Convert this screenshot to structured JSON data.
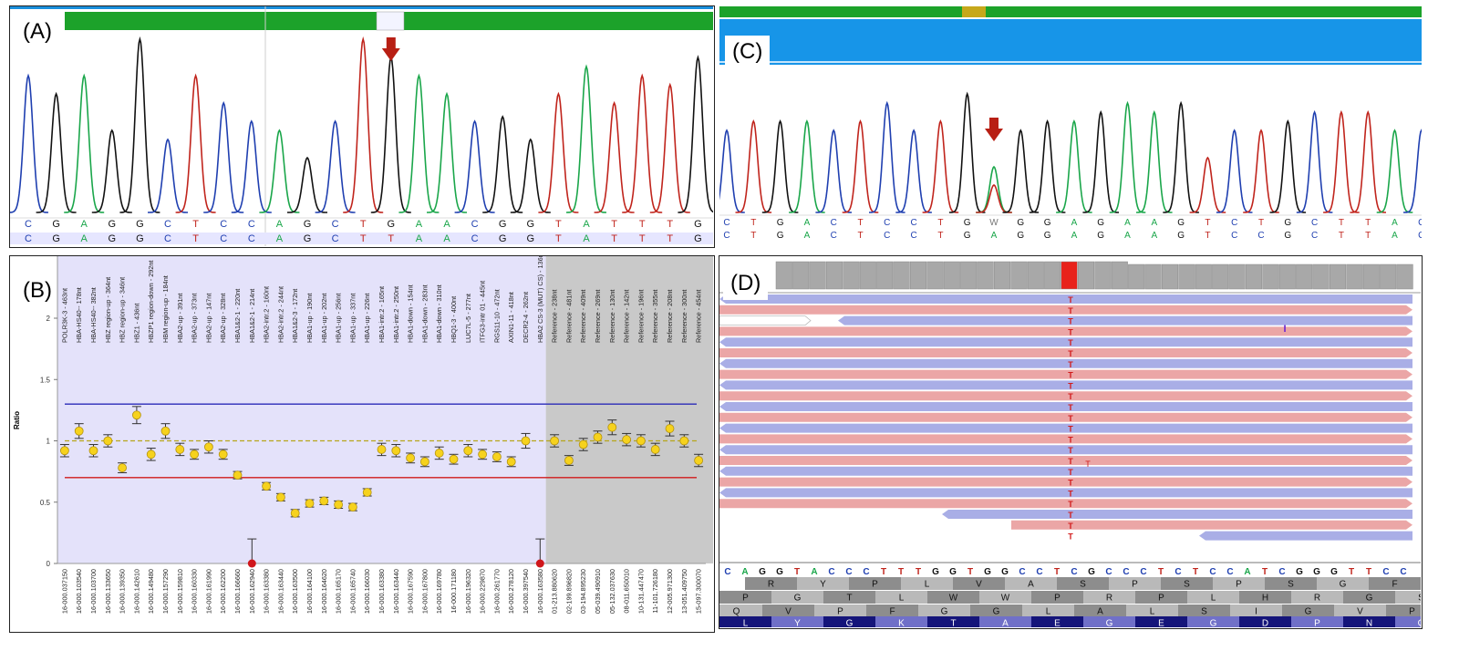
{
  "panels": {
    "A": {
      "label": "(A)",
      "arrow_color": "#b81f14"
    },
    "B": {
      "label": "(B)"
    },
    "C": {
      "label": "(C)",
      "arrow_color": "#b81f14"
    },
    "D": {
      "label": "(D)"
    }
  },
  "colors": {
    "A": "#1aa64a",
    "C": "#1f3fb0",
    "G": "#111111",
    "T": "#c0241c",
    "W": "#777777",
    "ref_bg": "#e6e6ff",
    "mlpa_bg": "#e4e2fa",
    "mlpa_ref_bg": "#c9c9c9",
    "fwd_read": "#eba6a6",
    "rev_read": "#a9aee6",
    "mismatch": "#e8221b"
  },
  "panelA": {
    "base_calls": [
      "C",
      "G",
      "A",
      "G",
      "G",
      "C",
      "T",
      "C",
      "C",
      "A",
      "G",
      "C",
      "T",
      "G",
      "A",
      "A",
      "C",
      "G",
      "G",
      "T",
      "A",
      "T",
      "T",
      "T",
      "G"
    ],
    "reference": [
      "C",
      "G",
      "A",
      "G",
      "G",
      "C",
      "T",
      "C",
      "C",
      "A",
      "G",
      "C",
      "T",
      "T",
      "A",
      "A",
      "C",
      "G",
      "G",
      "T",
      "A",
      "T",
      "T",
      "T",
      "G"
    ]
  },
  "panelB": {
    "chart_data": {
      "type": "scatter",
      "title": "",
      "xlabel": "",
      "ylabel": "Ratio",
      "ylim": [
        0,
        2
      ],
      "yticks": [
        0,
        0.5,
        1,
        1.5,
        2
      ],
      "upper_limit": 1.3,
      "lower_limit": 0.7,
      "mean_line": 1.0,
      "probe_names": [
        "POLR3K-3 - 463nt",
        "HBA-HS40-- 178nt",
        "HBA-HS40-- 382nt",
        "HBZ region-up - 364nt",
        "HBZ region-up - 346nt",
        "HBZ1 - 436nt",
        "HBZP1 region-down - 292nt",
        "HBM region-up - 184nt",
        "HBA2-up - 391nt",
        "HBA2-up - 373nt",
        "HBA2-up - 147nt",
        "HBA2-up - 328nt",
        "HBA1&2-1 - 220nt",
        "HBA1&2-1 - 214nt",
        "HBA2-intr.2 - 160nt",
        "HBA2-intr.2 - 244nt",
        "HBA1&2-3 - 172nt",
        "HBA1-up - 190nt",
        "HBA1-up - 202nt",
        "HBA1-up - 256nt",
        "HBA1-up - 337nt",
        "HBA1-up - 226nt",
        "HBA1-intr.2 - 165nt",
        "HBA1-intr.2 - 250nt",
        "HBA1-down - 154nt",
        "HBA1-down - 283nt",
        "HBA1-down - 310nt",
        "HBQ1-3 - 400nt",
        "LUC7L-5 - 277nt",
        "ITFG3-intr 01 - 445nt",
        "RGS11-10 - 472nt",
        "AXIN1-11 - 418nt",
        "DECR2-4 - 262nt",
        "HBA2 CS-3 (MUT) CS) - 136nt",
        "Reference - 238nt",
        "Reference - 481nt",
        "Reference - 409nt",
        "Reference - 269nt",
        "Reference - 130nt",
        "Reference - 142nt",
        "Reference - 196nt",
        "Reference - 355nt",
        "Reference - 208nt",
        "Reference - 300nt",
        "Reference - 454nt"
      ],
      "positions": [
        "16-000.037150",
        "16-000.103540",
        "16-000.103700",
        "16-000.133650",
        "16-000.139350",
        "16-000.142610",
        "16-000.149480",
        "16-000.157290",
        "16-000.159810",
        "16-000.160330",
        "16-000.161990",
        "16-000.162200",
        "16-000.166660",
        "16-000.162940",
        "16-000.163380",
        "16-000.163440",
        "16-000.163500",
        "16-000.164100",
        "16-000.164620",
        "16-000.165170",
        "16-000.165740",
        "16-000.166030",
        "16-000.163380",
        "16-000.163440",
        "16-000.167590",
        "16-000.167800",
        "16-000.169780",
        "16-000.171180",
        "16-000.196320",
        "16-000.229870",
        "16-000.261770",
        "16-000.278120",
        "16-000.397540",
        "16-000.163580",
        "01-213.880620",
        "02-199.896820",
        "03-194.895230",
        "05-039.490910",
        "05-132.037630",
        "08-011.650010",
        "10-131.447470",
        "11-101.726180",
        "12-005.971300",
        "13-051.409750",
        "15-097.300070"
      ],
      "values": [
        0.92,
        1.08,
        0.92,
        1.0,
        0.78,
        1.21,
        0.89,
        1.08,
        0.93,
        0.89,
        0.95,
        0.89,
        0.72,
        0.0,
        0.63,
        0.54,
        0.41,
        0.49,
        0.51,
        0.48,
        0.46,
        0.58,
        0.93,
        0.92,
        0.86,
        0.83,
        0.9,
        0.85,
        0.92,
        0.89,
        0.87,
        0.83,
        1.0,
        0.0,
        1.0,
        0.84,
        0.97,
        1.03,
        1.11,
        1.01,
        1.0,
        0.93,
        1.1,
        1.0,
        0.84
      ],
      "errors": [
        0.05,
        0.06,
        0.05,
        0.05,
        0.04,
        0.07,
        0.05,
        0.06,
        0.05,
        0.04,
        0.05,
        0.04,
        0.03,
        0.2,
        0.03,
        0.03,
        0.03,
        0.03,
        0.03,
        0.03,
        0.03,
        0.03,
        0.05,
        0.05,
        0.04,
        0.04,
        0.05,
        0.04,
        0.05,
        0.04,
        0.04,
        0.04,
        0.06,
        0.2,
        0.05,
        0.04,
        0.05,
        0.05,
        0.06,
        0.05,
        0.05,
        0.05,
        0.06,
        0.05,
        0.05
      ],
      "reference_start_index": 34
    }
  },
  "panelC": {
    "base_calls": [
      "C",
      "T",
      "G",
      "A",
      "C",
      "T",
      "C",
      "C",
      "T",
      "G",
      "W",
      "G",
      "G",
      "A",
      "G",
      "A",
      "A",
      "G",
      "T",
      "C",
      "T",
      "G",
      "C",
      "T",
      "T",
      "A",
      "C"
    ],
    "reference": [
      "C",
      "T",
      "G",
      "A",
      "C",
      "T",
      "C",
      "C",
      "T",
      "G",
      "A",
      "G",
      "G",
      "A",
      "G",
      "A",
      "A",
      "G",
      "T",
      "C",
      "C",
      "G",
      "C",
      "T",
      "T",
      "A",
      "C"
    ]
  },
  "panelD": {
    "mismatch_base": "T",
    "stray_base": "T",
    "insertion_marker": "I",
    "reference_seq": [
      "C",
      "A",
      "G",
      "G",
      "T",
      "A",
      "C",
      "C",
      "C",
      "T",
      "T",
      "T",
      "G",
      "G",
      "T",
      "G",
      "G",
      "C",
      "C",
      "T",
      "C",
      "G",
      "C",
      "C",
      "C",
      "T",
      "C",
      "T",
      "C",
      "C",
      "A",
      "T",
      "C",
      "G",
      "G",
      "G",
      "T",
      "T",
      "C",
      "C"
    ],
    "frame1": [
      "R",
      "Y",
      "P",
      "L",
      "V",
      "A",
      "S",
      "P",
      "S",
      "P",
      "S",
      "G",
      "F"
    ],
    "frame2": [
      "P",
      "G",
      "T",
      "L",
      "W",
      "W",
      "P",
      "R",
      "P",
      "L",
      "H",
      "R",
      "G",
      "S"
    ],
    "frame3": [
      "Q",
      "V",
      "P",
      "F",
      "G",
      "G",
      "L",
      "A",
      "L",
      "S",
      "I",
      "G",
      "V",
      "P"
    ],
    "frame4": [
      "L",
      "Y",
      "G",
      "K",
      "T",
      "A",
      "E",
      "G",
      "E",
      "G",
      "D",
      "P",
      "N",
      "G"
    ]
  }
}
